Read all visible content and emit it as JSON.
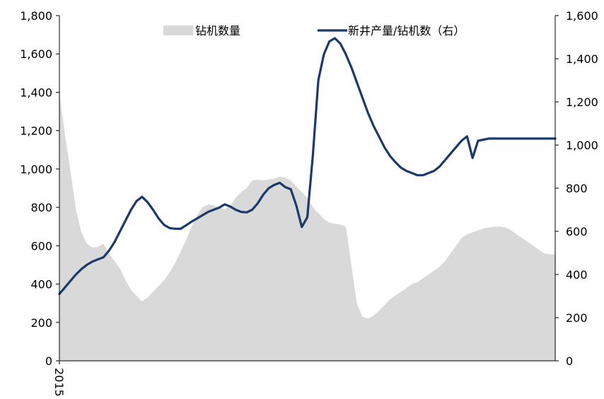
{
  "chart_data": {
    "type": "area+line",
    "title": "",
    "x": [
      2015.0,
      2015.05,
      2015.1,
      2015.15,
      2015.2,
      2015.25,
      2015.3,
      2015.35,
      2015.4,
      2015.45,
      2015.5,
      2015.55,
      2015.6,
      2015.65,
      2015.7,
      2015.75,
      2015.8,
      2015.85,
      2015.9,
      2015.95,
      2016.0,
      2016.05,
      2016.1,
      2016.15,
      2016.2,
      2016.25,
      2016.3,
      2016.35,
      2016.4,
      2016.45,
      2016.5,
      2016.55,
      2016.6,
      2016.65,
      2016.7,
      2016.75,
      2016.8,
      2016.85,
      2016.9,
      2016.95,
      2017.0,
      2017.05,
      2017.1,
      2017.15,
      2017.2,
      2017.25,
      2017.3,
      2017.35,
      2017.4,
      2017.45,
      2017.5,
      2017.55,
      2017.6,
      2017.65,
      2017.7,
      2017.75,
      2017.8,
      2017.85,
      2017.9,
      2017.95,
      2018.0,
      2018.05,
      2018.1,
      2018.15,
      2018.2,
      2018.25,
      2018.3,
      2018.35,
      2018.4,
      2018.45,
      2018.5,
      2018.55,
      2018.6,
      2018.65,
      2018.7,
      2018.75,
      2018.8,
      2018.85,
      2018.9,
      2018.95,
      2019.0,
      2019.05,
      2019.1,
      2019.15,
      2019.2,
      2019.25,
      2019.3,
      2019.35,
      2019.4,
      2019.45,
      2019.5
    ],
    "x_tick_labels": [
      {
        "x": 2015.0,
        "label": "2015"
      }
    ],
    "series": [
      {
        "name": "钻机数量",
        "type": "area",
        "axis": "left",
        "color": "#d9d9d9",
        "values": [
          1400,
          1180,
          990,
          790,
          670,
          610,
          590,
          595,
          610,
          560,
          520,
          480,
          420,
          370,
          340,
          310,
          330,
          360,
          390,
          420,
          460,
          510,
          570,
          630,
          700,
          760,
          800,
          815,
          810,
          800,
          790,
          810,
          850,
          880,
          900,
          940,
          945,
          940,
          945,
          950,
          960,
          955,
          940,
          910,
          880,
          850,
          800,
          770,
          740,
          720,
          715,
          710,
          700,
          500,
          300,
          230,
          220,
          235,
          260,
          290,
          320,
          340,
          360,
          380,
          400,
          410,
          430,
          450,
          470,
          490,
          520,
          560,
          600,
          640,
          660,
          670,
          680,
          690,
          695,
          700,
          700,
          695,
          680,
          660,
          640,
          620,
          600,
          580,
          560,
          555,
          555
        ]
      },
      {
        "name": "新井产量/钻机数（右）",
        "type": "line",
        "axis": "right",
        "color": "#1b3a6b",
        "values": [
          310,
          340,
          370,
          400,
          425,
          445,
          460,
          470,
          480,
          510,
          550,
          600,
          650,
          700,
          740,
          760,
          735,
          700,
          660,
          630,
          615,
          612,
          612,
          628,
          645,
          660,
          675,
          690,
          700,
          710,
          725,
          715,
          700,
          690,
          688,
          700,
          730,
          770,
          800,
          815,
          825,
          805,
          795,
          720,
          620,
          665,
          950,
          1300,
          1420,
          1480,
          1495,
          1470,
          1420,
          1360,
          1290,
          1220,
          1150,
          1090,
          1040,
          990,
          950,
          920,
          895,
          880,
          870,
          860,
          860,
          870,
          880,
          900,
          930,
          960,
          990,
          1020,
          1040,
          940,
          1020,
          1025,
          1030,
          1030,
          1030,
          1030,
          1030,
          1030,
          1030,
          1030,
          1030,
          1030,
          1030,
          1030,
          1030
        ]
      }
    ],
    "y_left": {
      "min": 0,
      "max": 1800,
      "ticks": [
        0,
        200,
        400,
        600,
        800,
        1000,
        1200,
        1400,
        1600,
        1800
      ],
      "labels": [
        "0",
        "200",
        "400",
        "600",
        "800",
        "1,000",
        "1,200",
        "1,400",
        "1,600",
        "1,800"
      ]
    },
    "y_right": {
      "min": 0,
      "max": 1600,
      "ticks": [
        0,
        200,
        400,
        600,
        800,
        1000,
        1200,
        1400,
        1600
      ],
      "labels": [
        "0",
        "200",
        "400",
        "600",
        "800",
        "1,000",
        "1,200",
        "1,400",
        "1,600"
      ]
    },
    "grid": false,
    "legend_position": "top"
  }
}
